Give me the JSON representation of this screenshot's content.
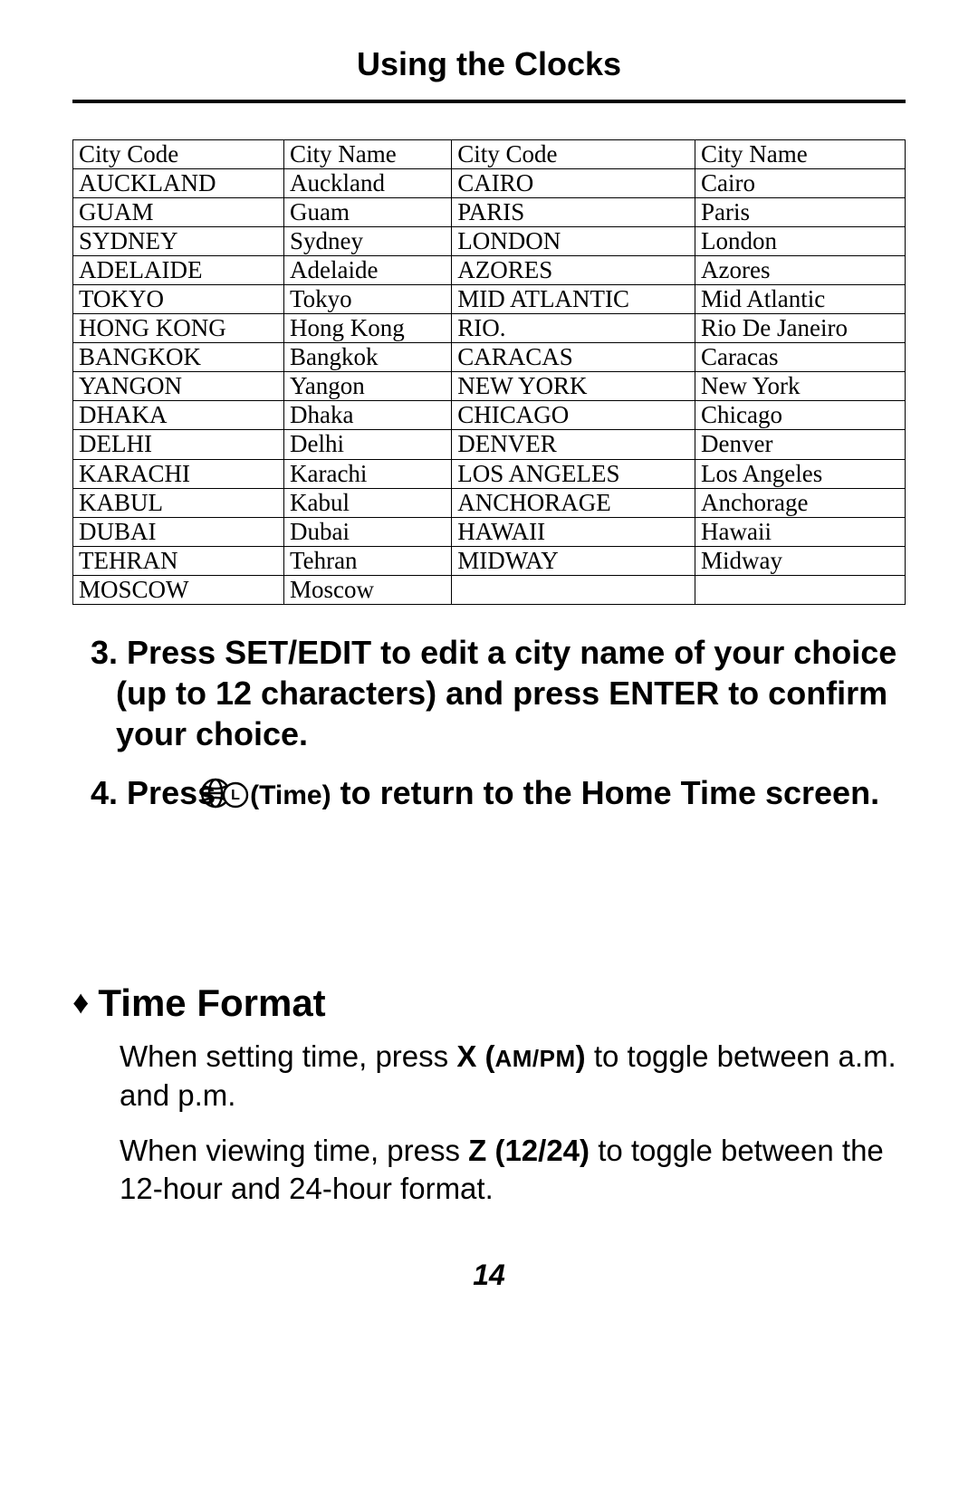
{
  "header": {
    "title": "Using the Clocks"
  },
  "table": {
    "columns": [
      "City Code",
      "City Name",
      "City Code",
      "City Name"
    ],
    "rows": [
      [
        "AUCKLAND",
        "Auckland",
        "CAIRO",
        "Cairo"
      ],
      [
        "GUAM",
        "Guam",
        "PARIS",
        "Paris"
      ],
      [
        "SYDNEY",
        "Sydney",
        "LONDON",
        "London"
      ],
      [
        "ADELAIDE",
        "Adelaide",
        "AZORES",
        "Azores"
      ],
      [
        "TOKYO",
        "Tokyo",
        "MID ATLANTIC",
        "Mid Atlantic"
      ],
      [
        "HONG KONG",
        "Hong Kong",
        "RIO.",
        "Rio De Janeiro"
      ],
      [
        "BANGKOK",
        "Bangkok",
        "CARACAS",
        "Caracas"
      ],
      [
        "YANGON",
        "Yangon",
        "NEW YORK",
        "New York"
      ],
      [
        "DHAKA",
        "Dhaka",
        "CHICAGO",
        "Chicago"
      ],
      [
        "DELHI",
        "Delhi",
        "DENVER",
        "Denver"
      ],
      [
        "KARACHI",
        "Karachi",
        "LOS ANGELES",
        "Los Angeles"
      ],
      [
        "KABUL",
        "Kabul",
        "ANCHORAGE",
        "Anchorage"
      ],
      [
        "DUBAI",
        "Dubai",
        "HAWAII",
        "Hawaii"
      ],
      [
        "TEHRAN",
        "Tehran",
        "MIDWAY",
        "Midway"
      ],
      [
        "MOSCOW",
        "Moscow",
        "",
        ""
      ]
    ]
  },
  "step3": {
    "num": "3.",
    "text": "Press SET/EDIT to edit a city name of your choice (up to 12 characters) and press ENTER to confirm your choice."
  },
  "step4": {
    "num": "4.",
    "before": "Press ",
    "time_label": "(Time)",
    "after": " to return to the Home Time screen."
  },
  "section": {
    "diamond": "♦",
    "title": "Time Format",
    "p1a": "When setting time, press ",
    "p1b": "X (",
    "p1c_small": "AM/PM",
    "p1d": ")",
    "p1e": " to toggle between a.m. and p.m.",
    "p2a": "When viewing time, press ",
    "p2b": "Z (12/24)",
    "p2c": " to toggle between the 12-hour and 24-hour format."
  },
  "pagenum": "14"
}
